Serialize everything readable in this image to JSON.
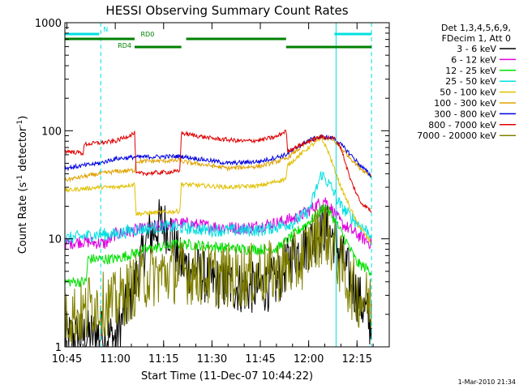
{
  "chart_data": {
    "type": "line",
    "title": "HESSI Observing Summary Count Rates",
    "xlabel": "Start Time (11-Dec-07 10:44:22)",
    "ylabel_prefix": "Count Rate (s",
    "ylabel_exp1": "-1",
    "ylabel_mid": " detector",
    "ylabel_exp2": "-1",
    "ylabel_suffix": ")",
    "y_scale": "log",
    "ylim": [
      1,
      1000
    ],
    "xlim": [
      "10:44:22",
      "12:25:00"
    ],
    "x_ticks": [
      {
        "t": "10:45",
        "label": "10:45"
      },
      {
        "t": "11:00",
        "label": "11:00"
      },
      {
        "t": "11:15",
        "label": "11:15"
      },
      {
        "t": "11:30",
        "label": "11:30"
      },
      {
        "t": "11:45",
        "label": "11:45"
      },
      {
        "t": "12:00",
        "label": "12:00"
      },
      {
        "t": "12:15",
        "label": "12:15"
      }
    ],
    "y_ticks": [
      {
        "v": 1,
        "label": "1"
      },
      {
        "v": 10,
        "label": "10"
      },
      {
        "v": 100,
        "label": "100"
      },
      {
        "v": 1000,
        "label": "1000"
      }
    ],
    "legend_header": [
      "Det 1,3,4,5,6,9,",
      "FDecim 1, Att 0"
    ],
    "series": [
      {
        "name": "3 - 6 keV",
        "color": "#000000",
        "noise": 0.5,
        "pts": [
          [
            "10:44:22",
            1.2
          ],
          [
            "10:55",
            1.3
          ],
          [
            "11:00",
            1.2
          ],
          [
            "11:05",
            3
          ],
          [
            "11:10",
            10
          ],
          [
            "11:14",
            14
          ],
          [
            "11:17",
            12
          ],
          [
            "11:20",
            6
          ],
          [
            "11:25",
            5
          ],
          [
            "11:30",
            4
          ],
          [
            "11:40",
            3.5
          ],
          [
            "11:45",
            3.5
          ],
          [
            "11:50",
            4
          ],
          [
            "11:55",
            7
          ],
          [
            "12:00",
            9
          ],
          [
            "12:05",
            13
          ],
          [
            "12:08",
            10
          ],
          [
            "12:12",
            5
          ],
          [
            "12:15",
            3
          ],
          [
            "12:18",
            2
          ],
          [
            "12:19:30",
            1.5
          ]
        ]
      },
      {
        "name": "6 - 12 keV",
        "color": "#e000e0",
        "noise": 0.12,
        "pts": [
          [
            "10:44:22",
            9
          ],
          [
            "10:50",
            9.5
          ],
          [
            "10:57",
            9
          ],
          [
            "11:00",
            11
          ],
          [
            "11:10",
            12.5
          ],
          [
            "11:20",
            14
          ],
          [
            "11:30",
            13
          ],
          [
            "11:40",
            12.5
          ],
          [
            "11:50",
            14
          ],
          [
            "11:57",
            16
          ],
          [
            "12:02",
            20
          ],
          [
            "12:05",
            23
          ],
          [
            "12:07",
            19
          ],
          [
            "12:10",
            14
          ],
          [
            "12:15",
            11
          ],
          [
            "12:19:30",
            9
          ]
        ]
      },
      {
        "name": "12 - 25 keV",
        "color": "#00e000",
        "noise": 0.1,
        "pts": [
          [
            "10:44:22",
            4
          ],
          [
            "10:51",
            4
          ],
          [
            "10:51:30",
            6.5
          ],
          [
            "11:00",
            6.5
          ],
          [
            "11:10",
            8
          ],
          [
            "11:20",
            9
          ],
          [
            "11:30",
            8.5
          ],
          [
            "11:40",
            8
          ],
          [
            "11:50",
            8
          ],
          [
            "11:57",
            12
          ],
          [
            "12:02",
            16
          ],
          [
            "12:05",
            20
          ],
          [
            "12:08",
            15
          ],
          [
            "12:12",
            9
          ],
          [
            "12:15",
            6
          ],
          [
            "12:19:30",
            5
          ]
        ]
      },
      {
        "name": "25 - 50 keV",
        "color": "#00e0e0",
        "noise": 0.12,
        "pts": [
          [
            "10:44:22",
            10
          ],
          [
            "10:55",
            11
          ],
          [
            "11:00",
            11
          ],
          [
            "11:05",
            12
          ],
          [
            "11:15",
            13
          ],
          [
            "11:30",
            12
          ],
          [
            "11:45",
            12
          ],
          [
            "11:55",
            14
          ],
          [
            "12:00",
            18
          ],
          [
            "12:04",
            40
          ],
          [
            "12:07",
            30
          ],
          [
            "12:10",
            20
          ],
          [
            "12:15",
            14
          ],
          [
            "12:19:30",
            11
          ]
        ]
      },
      {
        "name": "50 - 100 keV",
        "color": "#e0c000",
        "noise": 0.04,
        "pts": [
          [
            "10:44:22",
            28
          ],
          [
            "10:55",
            30
          ],
          [
            "11:00",
            30
          ],
          [
            "11:06",
            32
          ],
          [
            "11:06:30",
            17
          ],
          [
            "11:20",
            18
          ],
          [
            "11:20:30",
            32
          ],
          [
            "11:35",
            30
          ],
          [
            "11:45",
            31
          ],
          [
            "11:53",
            36
          ],
          [
            "11:53:30",
            48
          ],
          [
            "12:00",
            70
          ],
          [
            "12:04",
            85
          ],
          [
            "12:06",
            65
          ],
          [
            "12:10",
            30
          ],
          [
            "12:15",
            14
          ],
          [
            "12:19:30",
            9
          ]
        ]
      },
      {
        "name": "100 - 300 keV",
        "color": "#e0a000",
        "noise": 0.04,
        "pts": [
          [
            "10:44:22",
            35
          ],
          [
            "10:55",
            40
          ],
          [
            "11:00",
            42
          ],
          [
            "11:06",
            43
          ],
          [
            "11:06:30",
            52
          ],
          [
            "11:20",
            53
          ],
          [
            "11:20:30",
            52
          ],
          [
            "11:35",
            45
          ],
          [
            "11:45",
            47
          ],
          [
            "11:53",
            55
          ],
          [
            "12:00",
            80
          ],
          [
            "12:04",
            88
          ],
          [
            "12:08",
            80
          ],
          [
            "12:12",
            60
          ],
          [
            "12:16",
            45
          ],
          [
            "12:19:30",
            38
          ]
        ]
      },
      {
        "name": "300 - 800 keV",
        "color": "#0000e0",
        "noise": 0.04,
        "pts": [
          [
            "10:44:22",
            45
          ],
          [
            "10:55",
            50
          ],
          [
            "11:00",
            55
          ],
          [
            "11:06",
            57
          ],
          [
            "11:20",
            58
          ],
          [
            "11:20:30",
            58
          ],
          [
            "11:35",
            50
          ],
          [
            "11:45",
            52
          ],
          [
            "11:53",
            60
          ],
          [
            "12:00",
            82
          ],
          [
            "12:04",
            88
          ],
          [
            "12:08",
            85
          ],
          [
            "12:12",
            65
          ],
          [
            "12:16",
            48
          ],
          [
            "12:19:30",
            38
          ]
        ]
      },
      {
        "name": "800 - 7000 keV",
        "color": "#e00000",
        "noise": 0.04,
        "pts": [
          [
            "10:44:22",
            65
          ],
          [
            "10:50",
            62
          ],
          [
            "10:50:30",
            75
          ],
          [
            "11:00",
            80
          ],
          [
            "11:06",
            95
          ],
          [
            "11:06:30",
            40
          ],
          [
            "11:20",
            42
          ],
          [
            "11:20:30",
            95
          ],
          [
            "11:30",
            85
          ],
          [
            "11:40",
            80
          ],
          [
            "11:45",
            82
          ],
          [
            "11:50",
            88
          ],
          [
            "11:53",
            100
          ],
          [
            "11:53:30",
            65
          ],
          [
            "12:00",
            80
          ],
          [
            "12:04",
            88
          ],
          [
            "12:08",
            85
          ],
          [
            "12:10",
            70
          ],
          [
            "12:13",
            35
          ],
          [
            "12:16",
            22
          ],
          [
            "12:19:30",
            18
          ]
        ]
      },
      {
        "name": "7000 - 20000 keV",
        "color": "#808000",
        "noise": 0.6,
        "pts": [
          [
            "10:44:22",
            2
          ],
          [
            "10:51",
            2
          ],
          [
            "10:51:30",
            2.5
          ],
          [
            "11:00",
            2.5
          ],
          [
            "11:05",
            3.5
          ],
          [
            "11:10",
            4.5
          ],
          [
            "11:20",
            5
          ],
          [
            "11:30",
            4.5
          ],
          [
            "11:40",
            4.5
          ],
          [
            "11:50",
            5
          ],
          [
            "11:57",
            6
          ],
          [
            "12:02",
            10
          ],
          [
            "12:05",
            12
          ],
          [
            "12:08",
            8
          ],
          [
            "12:12",
            4
          ],
          [
            "12:15",
            3
          ],
          [
            "12:19:30",
            2.5
          ]
        ]
      }
    ],
    "state_bars": [
      {
        "label": "N",
        "color": "#00e0e0",
        "label_pos": "above",
        "label_at": "10:57",
        "segments": [
          [
            "10:44:22",
            "10:55"
          ],
          [
            "12:08",
            "12:19:30"
          ]
        ]
      },
      {
        "label": "RD0",
        "color": "#008000",
        "label_pos": "above",
        "label_at": "11:10",
        "segments": [
          [
            "10:44:22",
            "11:06"
          ],
          [
            "11:22",
            "11:53"
          ]
        ]
      },
      {
        "label": "RD4",
        "color": "#008000",
        "label_pos": "left",
        "label_at": "11:05",
        "segments": [
          [
            "11:06",
            "11:20:30"
          ],
          [
            "11:53",
            "12:19:30"
          ]
        ]
      }
    ],
    "vertical_lines": [
      {
        "t": "10:44:22",
        "style": "solid"
      },
      {
        "t": "10:55:30",
        "style": "dashed"
      },
      {
        "t": "12:08:30",
        "style": "solid"
      },
      {
        "t": "12:19:30",
        "style": "dashed"
      }
    ],
    "footer_date": "1-Mar-2010 21:34"
  }
}
